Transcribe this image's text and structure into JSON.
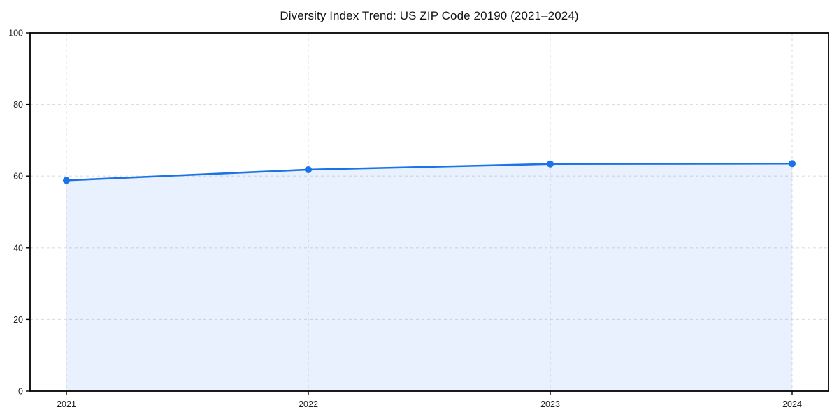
{
  "chart_data": {
    "type": "line",
    "title": "Diversity Index Trend: US ZIP Code 20190 (2021–2024)",
    "xlabel": "",
    "ylabel": "",
    "x": [
      2021,
      2022,
      2023,
      2024
    ],
    "series": [
      {
        "name": "Diversity Index",
        "values": [
          58.8,
          61.8,
          63.4,
          63.5
        ]
      }
    ],
    "ylim": [
      0,
      100
    ],
    "yticks": [
      0,
      20,
      40,
      60,
      80,
      100
    ],
    "grid": true,
    "grid_style": "dashed",
    "legend": "none",
    "area_fill": true,
    "marker": "circle",
    "colors": {
      "line": "#1a73e8",
      "marker": "#1a73e8",
      "area": "#1a73e8",
      "area_opacity": 0.1,
      "grid": "#dedede",
      "spine": "#000000",
      "text": "#1a1a1a",
      "background": "#ffffff"
    }
  }
}
